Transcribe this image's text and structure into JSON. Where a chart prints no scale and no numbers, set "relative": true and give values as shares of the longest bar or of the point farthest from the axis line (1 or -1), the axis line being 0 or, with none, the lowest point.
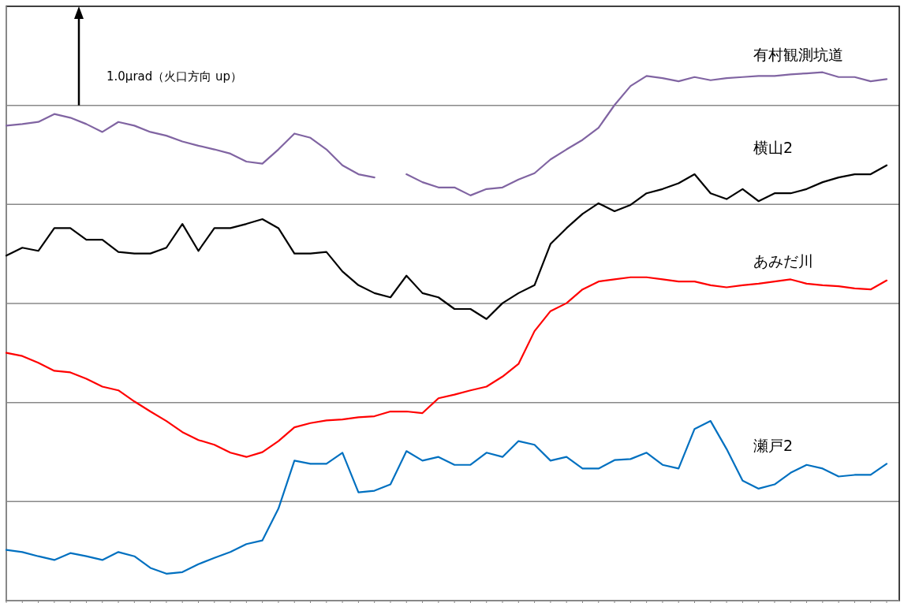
{
  "chart_data": {
    "type": "line",
    "relative": true,
    "annotations": [
      "1.0μrad（火口方向 up）"
    ],
    "categories": [
      null,
      null,
      null,
      null,
      null,
      null,
      null,
      null,
      null,
      null,
      null,
      null,
      null,
      null,
      null,
      null,
      null,
      null,
      null,
      null,
      null,
      null,
      null,
      null,
      null,
      null,
      null,
      null,
      null,
      null,
      null,
      null,
      null,
      null,
      null,
      null,
      null,
      null,
      null,
      null,
      null,
      null,
      null,
      null,
      null,
      null,
      null,
      null,
      null,
      null,
      null,
      null,
      null,
      null,
      null,
      null
    ],
    "grid": "y",
    "series": [
      {
        "name": "有村観測坑道",
        "color": "#8064a2",
        "values": [
          0.899,
          0.902,
          0.906,
          0.921,
          0.914,
          0.902,
          0.887,
          0.906,
          0.899,
          0.887,
          0.88,
          0.869,
          0.861,
          0.854,
          0.846,
          0.831,
          0.827,
          0.854,
          0.884,
          0.876,
          0.854,
          0.824,
          0.807,
          0.801,
          null,
          0.807,
          0.792,
          0.782,
          0.782,
          0.767,
          0.779,
          0.782,
          0.797,
          0.809,
          0.835,
          0.854,
          0.872,
          0.895,
          0.938,
          0.974,
          0.993,
          0.989,
          0.983,
          0.991,
          0.985,
          0.989,
          0.991,
          0.993,
          0.993,
          0.996,
          0.998,
          1,
          0.991,
          0.991,
          0.983,
          0.987
        ]
      },
      {
        "name": "横山2",
        "color": "#000000",
        "values": [
          0.653,
          0.668,
          0.662,
          0.705,
          0.705,
          0.683,
          0.683,
          0.66,
          0.657,
          0.657,
          0.668,
          0.713,
          0.662,
          0.705,
          0.705,
          0.713,
          0.722,
          0.705,
          0.657,
          0.657,
          0.66,
          0.623,
          0.597,
          0.582,
          0.574,
          0.615,
          0.582,
          0.574,
          0.552,
          0.552,
          0.533,
          0.563,
          0.582,
          0.597,
          0.675,
          0.705,
          0.732,
          0.752,
          0.737,
          0.749,
          0.771,
          0.779,
          0.79,
          0.807,
          0.771,
          0.76,
          0.779,
          0.756,
          0.771,
          0.771,
          0.779,
          0.792,
          0.801,
          0.807,
          0.807,
          0.824
        ]
      },
      {
        "name": "あみだ川",
        "color": "#ff0000",
        "values": [
          0.469,
          0.463,
          0.45,
          0.435,
          0.432,
          0.42,
          0.405,
          0.398,
          0.377,
          0.358,
          0.34,
          0.319,
          0.304,
          0.295,
          0.28,
          0.272,
          0.281,
          0.302,
          0.328,
          0.336,
          0.341,
          0.343,
          0.347,
          0.349,
          0.358,
          0.358,
          0.355,
          0.383,
          0.39,
          0.398,
          0.405,
          0.424,
          0.448,
          0.51,
          0.548,
          0.563,
          0.589,
          0.604,
          0.608,
          0.612,
          0.612,
          0.608,
          0.604,
          0.604,
          0.597,
          0.593,
          0.597,
          0.6,
          0.604,
          0.608,
          0.6,
          0.597,
          0.595,
          0.591,
          0.589,
          0.606
        ]
      },
      {
        "name": "瀬戸2",
        "color": "#0070c0",
        "values": [
          0.096,
          0.092,
          0.084,
          0.077,
          0.09,
          0.084,
          0.077,
          0.092,
          0.084,
          0.062,
          0.051,
          0.054,
          0.069,
          0.081,
          0.092,
          0.107,
          0.114,
          0.174,
          0.265,
          0.259,
          0.259,
          0.28,
          0.205,
          0.208,
          0.22,
          0.283,
          0.265,
          0.272,
          0.257,
          0.257,
          0.28,
          0.272,
          0.302,
          0.295,
          0.265,
          0.272,
          0.25,
          0.25,
          0.266,
          0.268,
          0.28,
          0.257,
          0.25,
          0.325,
          0.34,
          0.287,
          0.227,
          0.212,
          0.22,
          0.242,
          0.257,
          0.25,
          0.235,
          0.238,
          0.238,
          0.259
        ]
      }
    ]
  }
}
